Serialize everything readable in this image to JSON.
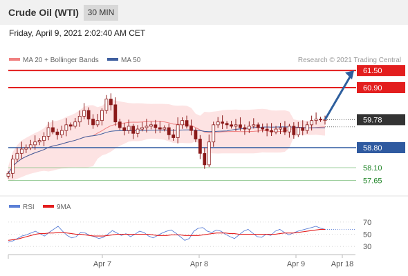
{
  "header": {
    "title": "Crude Oil (WTI)",
    "interval": "30 MIN"
  },
  "datetime": "Friday, April 9, 2021 2:02:40 AM CET",
  "legend": {
    "ma20": "MA 20 + Bollinger Bands",
    "ma50": "MA 50",
    "credit": "Research © 2021 Trading Central",
    "rsi": "RSI",
    "ma9": "9MA"
  },
  "colors": {
    "ma20": "#f08080",
    "ma50": "#3f5f9f",
    "bollinger_fill": "#fde3e3",
    "resistance": "#e31e1e",
    "support": "#2f5aa0",
    "target": "#22862a",
    "last_price": "#333333",
    "arrow": "#2e5f9e",
    "candle": "#8b1a1a",
    "rsi_line": "#5b7fd6",
    "rsi_ma": "#e31e1e"
  },
  "chart_data": [
    {
      "type": "candlestick",
      "title": "Crude Oil (WTI)",
      "timeframe": "30 MIN",
      "x_ticks": [
        "Apr 7",
        "Apr 8",
        "Apr 9",
        "Apr 18"
      ],
      "ylim": [
        57.4,
        61.6
      ],
      "price_levels": [
        {
          "value": 61.5,
          "label": "61.50",
          "kind": "resistance"
        },
        {
          "value": 60.9,
          "label": "60.90",
          "kind": "resistance"
        },
        {
          "value": 59.78,
          "label": "59.78",
          "kind": "last"
        },
        {
          "value": 58.8,
          "label": "58.80",
          "kind": "support"
        },
        {
          "value": 58.1,
          "label": "58.10",
          "kind": "target"
        },
        {
          "value": 57.65,
          "label": "57.65",
          "kind": "target"
        }
      ],
      "projection": {
        "from": 59.78,
        "to": 61.5
      },
      "close_series": [
        57.9,
        58.4,
        58.6,
        58.75,
        58.8,
        58.9,
        59.0,
        59.05,
        59.2,
        59.5,
        59.35,
        59.25,
        59.4,
        59.6,
        59.55,
        59.7,
        59.9,
        60.1,
        59.8,
        59.6,
        59.75,
        60.1,
        60.5,
        60.3,
        59.7,
        59.5,
        59.4,
        59.55,
        59.3,
        59.45,
        59.5,
        59.55,
        59.6,
        59.5,
        59.45,
        59.5,
        59.25,
        59.15,
        59.6,
        59.75,
        59.55,
        59.4,
        59.1,
        58.6,
        58.2,
        59.0,
        59.6,
        59.7,
        59.65,
        59.6,
        59.55,
        59.6,
        59.5,
        59.45,
        59.55,
        59.6,
        59.5,
        59.45,
        59.4,
        59.35,
        59.45,
        59.5,
        59.35,
        59.55,
        59.25,
        59.5,
        59.4,
        59.6,
        59.75,
        59.8,
        59.78,
        59.78
      ],
      "legend": [
        "MA 20 + Bollinger Bands",
        "MA 50"
      ]
    },
    {
      "type": "line",
      "legend": [
        "RSI",
        "9MA"
      ],
      "y_ticks": [
        70,
        50,
        30
      ],
      "ylim": [
        20,
        80
      ],
      "series": [
        {
          "name": "RSI",
          "values": [
            37,
            39,
            43,
            47,
            49,
            52,
            55,
            51,
            47,
            53,
            58,
            63,
            55,
            48,
            44,
            46,
            53,
            52,
            48,
            46,
            43,
            45,
            50,
            56,
            52,
            48,
            51,
            46,
            50,
            55,
            53,
            47,
            44,
            48,
            52,
            55,
            57,
            52,
            46,
            40,
            43,
            55,
            60,
            61,
            55,
            53,
            57,
            55,
            50,
            46,
            43,
            49,
            55,
            58,
            52,
            46,
            45,
            50,
            48,
            55,
            58,
            53,
            49,
            52,
            55,
            57,
            59,
            61,
            63,
            60,
            58
          ]
        },
        {
          "name": "9MA",
          "values": [
            40,
            41,
            42,
            44,
            46,
            48,
            50,
            51,
            51,
            52,
            52,
            53,
            53,
            52,
            51,
            50,
            50,
            49,
            48,
            47,
            47,
            47,
            48,
            49,
            50,
            50,
            50,
            50,
            50,
            50,
            50,
            50,
            49,
            48,
            48,
            48,
            49,
            49,
            49,
            48,
            48,
            48,
            48,
            49,
            50,
            51,
            52,
            52,
            52,
            51,
            51,
            50,
            50,
            50,
            50,
            50,
            50,
            50,
            50,
            50,
            51,
            52,
            52,
            52,
            53,
            54,
            55,
            56,
            57,
            58,
            58
          ]
        }
      ]
    }
  ]
}
